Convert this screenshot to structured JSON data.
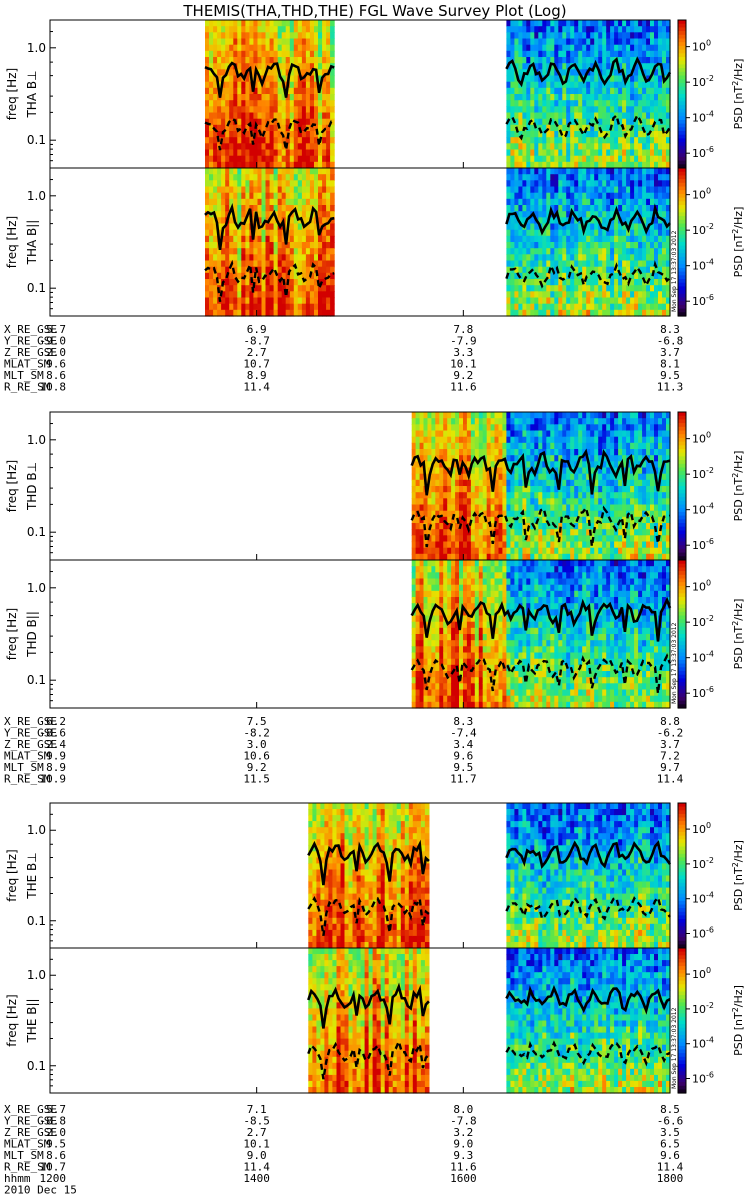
{
  "title": "THEMIS(THA,THD,THE) FGL Wave Survey Plot (Log)",
  "footer_date": "2010 Dec 15",
  "stamp_text": "Mon Sep 17 13:37:03 2012",
  "freq_axis_label": "freq [Hz]",
  "colorbar_label": "PSD [nT^2/Hz]",
  "colorbar_ticks": [
    "10^0",
    "10^-2",
    "10^-4",
    "10^-6"
  ],
  "freq_ticks": [
    "1.0",
    "0.1"
  ],
  "chart_data": {
    "type": "heatmap",
    "x_axis": {
      "name": "hhmm",
      "ticks": [
        "1200",
        "1400",
        "1600",
        "1800"
      ]
    },
    "y_axis": {
      "scale": "log",
      "range_hz": [
        0.05,
        2.0
      ]
    },
    "color_scale": {
      "scale": "log",
      "range": [
        1e-07,
        20
      ]
    },
    "probes": [
      {
        "id": "THA",
        "panels": [
          {
            "label": "THA B⊥",
            "coverage": [
              [
                "1330",
                "1445"
              ],
              [
                "1625",
                "1800"
              ]
            ]
          },
          {
            "label": "THA B||",
            "coverage": [
              [
                "1330",
                "1445"
              ],
              [
                "1625",
                "1800"
              ]
            ]
          }
        ],
        "ephemeris": [
          {
            "name": "X_RE_GSE",
            "values": [
              "5.7",
              "6.9",
              "7.8",
              "8.3"
            ]
          },
          {
            "name": "Y_RE_GSE",
            "values": [
              "-9.0",
              "-8.7",
              "-7.9",
              "-6.8"
            ]
          },
          {
            "name": "Z_RE_GSE",
            "values": [
              "2.0",
              "2.7",
              "3.3",
              "3.7"
            ]
          },
          {
            "name": "MLAT_SM",
            "values": [
              "9.6",
              "10.7",
              "10.1",
              "8.1"
            ]
          },
          {
            "name": "MLT_SM",
            "values": [
              "8.6",
              "8.9",
              "9.2",
              "9.5"
            ]
          },
          {
            "name": "R_RE_SM",
            "values": [
              "10.8",
              "11.4",
              "11.6",
              "11.3"
            ]
          }
        ]
      },
      {
        "id": "THD",
        "panels": [
          {
            "label": "THD B⊥",
            "coverage": [
              [
                "1530",
                "1800"
              ]
            ]
          },
          {
            "label": "THD B||",
            "coverage": [
              [
                "1530",
                "1800"
              ]
            ]
          }
        ],
        "ephemeris": [
          {
            "name": "X_RE_GSE",
            "values": [
              "6.2",
              "7.5",
              "8.3",
              "8.8"
            ]
          },
          {
            "name": "Y_RE_GSE",
            "values": [
              "-8.6",
              "-8.2",
              "-7.4",
              "-6.2"
            ]
          },
          {
            "name": "Z_RE_GSE",
            "values": [
              "2.4",
              "3.0",
              "3.4",
              "3.7"
            ]
          },
          {
            "name": "MLAT_SM",
            "values": [
              "9.9",
              "10.6",
              "9.6",
              "7.2"
            ]
          },
          {
            "name": "MLT_SM",
            "values": [
              "8.9",
              "9.2",
              "9.5",
              "9.7"
            ]
          },
          {
            "name": "R_RE_SM",
            "values": [
              "10.9",
              "11.5",
              "11.7",
              "11.4"
            ]
          }
        ]
      },
      {
        "id": "THE",
        "panels": [
          {
            "label": "THE B⊥",
            "coverage": [
              [
                "1430",
                "1540"
              ],
              [
                "1625",
                "1800"
              ]
            ]
          },
          {
            "label": "THE B||",
            "coverage": [
              [
                "1430",
                "1540"
              ],
              [
                "1625",
                "1800"
              ]
            ]
          }
        ],
        "ephemeris": [
          {
            "name": "X_RE_GSE",
            "values": [
              "5.7",
              "7.1",
              "8.0",
              "8.5"
            ]
          },
          {
            "name": "Y_RE_GSE",
            "values": [
              "-8.8",
              "-8.5",
              "-7.8",
              "-6.6"
            ]
          },
          {
            "name": "Z_RE_GSE",
            "values": [
              "2.0",
              "2.7",
              "3.2",
              "3.5"
            ]
          },
          {
            "name": "MLAT_SM",
            "values": [
              "9.5",
              "10.1",
              "9.0",
              "6.5"
            ]
          },
          {
            "name": "MLT_SM",
            "values": [
              "8.6",
              "9.0",
              "9.3",
              "9.6"
            ]
          },
          {
            "name": "R_RE_SM",
            "values": [
              "10.7",
              "11.4",
              "11.6",
              "11.4"
            ]
          }
        ]
      }
    ]
  }
}
